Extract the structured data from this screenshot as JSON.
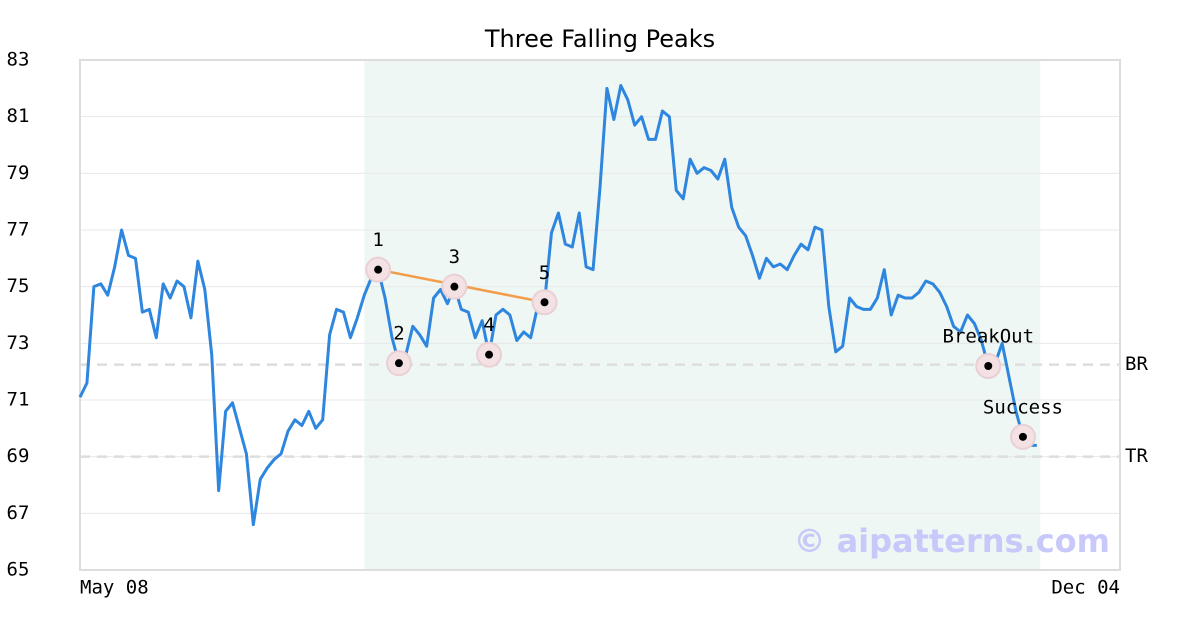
{
  "chart_data": {
    "type": "line",
    "title": "Three Falling Peaks",
    "x": [
      0,
      1,
      2,
      3,
      4,
      5,
      6,
      7,
      8,
      9,
      10,
      11,
      12,
      13,
      14,
      15,
      16,
      17,
      18,
      19,
      20,
      21,
      22,
      23,
      24,
      25,
      26,
      27,
      28,
      29,
      30,
      31,
      32,
      33,
      34,
      35,
      36,
      37,
      38,
      39,
      40,
      41,
      42,
      43,
      44,
      45,
      46,
      47,
      48,
      49,
      50,
      51,
      52,
      53,
      54,
      55,
      56,
      57,
      58,
      59,
      60,
      61,
      62,
      63,
      64,
      65,
      66,
      67,
      68,
      69,
      70,
      71,
      72,
      73,
      74,
      75,
      76,
      77,
      78,
      79,
      80,
      81,
      82,
      83,
      84,
      85,
      86,
      87,
      88,
      89,
      90,
      91,
      92,
      93,
      94,
      95,
      96,
      97,
      98,
      99,
      100,
      101,
      102,
      103,
      104,
      105,
      106,
      107,
      108,
      109,
      110,
      111,
      112,
      113,
      114,
      115,
      116,
      117,
      118,
      119,
      120,
      121,
      122,
      123,
      124,
      125,
      126,
      127,
      128,
      129,
      130,
      131,
      132,
      133,
      134,
      135,
      136,
      137,
      138
    ],
    "series": [
      {
        "color": "#2e86de",
        "values": [
          71.1,
          71.6,
          75.0,
          75.1,
          74.7,
          75.7,
          77.0,
          76.1,
          76.0,
          74.1,
          74.2,
          73.2,
          75.1,
          74.6,
          75.2,
          75.0,
          73.9,
          75.9,
          74.9,
          72.6,
          67.8,
          70.6,
          70.9,
          70.0,
          69.1,
          66.6,
          68.2,
          68.6,
          68.9,
          69.1,
          69.9,
          70.3,
          70.1,
          70.6,
          70.0,
          70.3,
          73.3,
          74.2,
          74.1,
          73.2,
          73.9,
          74.7,
          75.3,
          75.6,
          74.6,
          73.2,
          72.3,
          72.6,
          73.6,
          73.3,
          72.9,
          74.6,
          74.9,
          74.4,
          75.0,
          74.2,
          74.1,
          73.2,
          73.8,
          72.6,
          74.0,
          74.2,
          74.0,
          73.1,
          73.4,
          73.2,
          74.3,
          74.45,
          76.9,
          77.6,
          76.5,
          76.4,
          77.6,
          75.7,
          75.6,
          78.5,
          82.0,
          80.9,
          82.1,
          81.6,
          80.7,
          81.0,
          80.2,
          80.2,
          81.2,
          81.0,
          78.4,
          78.1,
          79.5,
          79.0,
          79.2,
          79.1,
          78.8,
          79.5,
          77.8,
          77.1,
          76.8,
          76.1,
          75.3,
          76.0,
          75.7,
          75.8,
          75.6,
          76.1,
          76.5,
          76.3,
          77.1,
          77.0,
          74.3,
          72.7,
          72.9,
          74.6,
          74.3,
          74.2,
          74.2,
          74.6,
          75.6,
          74.0,
          74.7,
          74.6,
          74.6,
          74.8,
          75.2,
          75.1,
          74.8,
          74.3,
          73.6,
          73.4,
          74.0,
          73.7,
          73.1,
          72.2,
          72.3,
          73.0,
          71.8,
          70.6,
          69.7,
          69.4,
          69.4
        ]
      }
    ],
    "xlim": [
      0,
      150
    ],
    "xticks": [
      {
        "value": 0,
        "label": "May 08"
      },
      {
        "value": 150,
        "label": "Dec 04"
      }
    ],
    "ylim": [
      65,
      83
    ],
    "yticks": [
      65,
      67,
      69,
      71,
      73,
      75,
      77,
      79,
      81,
      83
    ],
    "grid": true,
    "highlight_range": [
      41,
      138.5
    ],
    "highlight_color": "#eef7f3",
    "reference_lines": [
      {
        "label": "BR",
        "value": 72.25
      },
      {
        "label": "TR",
        "value": 69
      }
    ],
    "trendline": {
      "color": "#f39c4a",
      "x": [
        43,
        67
      ],
      "y": [
        75.6,
        74.45
      ]
    },
    "annotations": [
      {
        "label": "1",
        "x": 43,
        "y": 75.6
      },
      {
        "label": "2",
        "x": 46,
        "y": 72.3
      },
      {
        "label": "3",
        "x": 54,
        "y": 75.0
      },
      {
        "label": "4",
        "x": 59,
        "y": 72.6
      },
      {
        "label": "5",
        "x": 67,
        "y": 74.45
      },
      {
        "label": "BreakOut",
        "x": 131,
        "y": 72.2
      },
      {
        "label": "Success",
        "x": 136,
        "y": 69.7
      }
    ],
    "watermark": "© aipatterns.com"
  }
}
